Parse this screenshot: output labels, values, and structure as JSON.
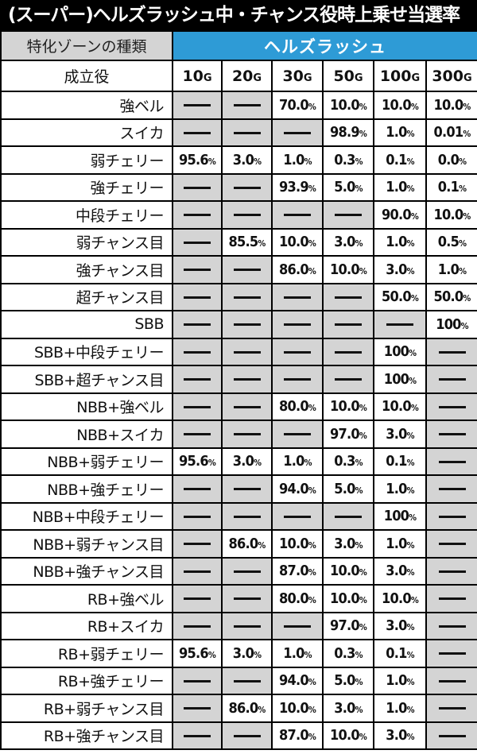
{
  "title": "(スーパー)ヘルズラッシュ中・チャンス役時上乗せ当選率",
  "header": {
    "zone_label": "特化ゾーンの種類",
    "zone_value": "ヘルズラッシュ",
    "role_label": "成立役",
    "games": [
      "10",
      "20",
      "30",
      "50",
      "100",
      "300"
    ],
    "game_unit": "G"
  },
  "colors": {
    "title_bg": "#000000",
    "header_blue": "#2e9bd6",
    "dash_bg": "#d4d4d4"
  },
  "rows": [
    {
      "role": "強ベル",
      "cells": [
        "-",
        "-",
        "70.0",
        "10.0",
        "10.0",
        "10.0"
      ]
    },
    {
      "role": "スイカ",
      "cells": [
        "-",
        "-",
        "-",
        "98.9",
        "1.0",
        "0.01"
      ]
    },
    {
      "role": "弱チェリー",
      "cells": [
        "95.6",
        "3.0",
        "1.0",
        "0.3",
        "0.1",
        "0.0"
      ]
    },
    {
      "role": "強チェリー",
      "cells": [
        "-",
        "-",
        "93.9",
        "5.0",
        "1.0",
        "0.1"
      ]
    },
    {
      "role": "中段チェリー",
      "cells": [
        "-",
        "-",
        "-",
        "-",
        "90.0",
        "10.0"
      ]
    },
    {
      "role": "弱チャンス目",
      "cells": [
        "-",
        "85.5",
        "10.0",
        "3.0",
        "1.0",
        "0.5"
      ]
    },
    {
      "role": "強チャンス目",
      "cells": [
        "-",
        "-",
        "86.0",
        "10.0",
        "3.0",
        "1.0"
      ]
    },
    {
      "role": "超チャンス目",
      "cells": [
        "-",
        "-",
        "-",
        "-",
        "50.0",
        "50.0"
      ]
    },
    {
      "role": "SBB",
      "cells": [
        "-",
        "-",
        "-",
        "-",
        "-",
        "100"
      ]
    },
    {
      "role": "SBB+中段チェリー",
      "cells": [
        "-",
        "-",
        "-",
        "-",
        "100",
        "-"
      ]
    },
    {
      "role": "SBB+超チャンス目",
      "cells": [
        "-",
        "-",
        "-",
        "-",
        "100",
        "-"
      ]
    },
    {
      "role": "NBB+強ベル",
      "cells": [
        "-",
        "-",
        "80.0",
        "10.0",
        "10.0",
        "-"
      ]
    },
    {
      "role": "NBB+スイカ",
      "cells": [
        "-",
        "-",
        "-",
        "97.0",
        "3.0",
        "-"
      ]
    },
    {
      "role": "NBB+弱チェリー",
      "cells": [
        "95.6",
        "3.0",
        "1.0",
        "0.3",
        "0.1",
        "-"
      ]
    },
    {
      "role": "NBB+強チェリー",
      "cells": [
        "-",
        "-",
        "94.0",
        "5.0",
        "1.0",
        "-"
      ]
    },
    {
      "role": "NBB+中段チェリー",
      "cells": [
        "-",
        "-",
        "-",
        "-",
        "100",
        "-"
      ]
    },
    {
      "role": "NBB+弱チャンス目",
      "cells": [
        "-",
        "86.0",
        "10.0",
        "3.0",
        "1.0",
        "-"
      ]
    },
    {
      "role": "NBB+強チャンス目",
      "cells": [
        "-",
        "-",
        "87.0",
        "10.0",
        "3.0",
        "-"
      ]
    },
    {
      "role": "RB+強ベル",
      "cells": [
        "-",
        "-",
        "80.0",
        "10.0",
        "10.0",
        "-"
      ]
    },
    {
      "role": "RB+スイカ",
      "cells": [
        "-",
        "-",
        "-",
        "97.0",
        "3.0",
        "-"
      ]
    },
    {
      "role": "RB+弱チェリー",
      "cells": [
        "95.6",
        "3.0",
        "1.0",
        "0.3",
        "0.1",
        "-"
      ]
    },
    {
      "role": "RB+強チェリー",
      "cells": [
        "-",
        "-",
        "94.0",
        "5.0",
        "1.0",
        "-"
      ]
    },
    {
      "role": "RB+弱チャンス目",
      "cells": [
        "-",
        "86.0",
        "10.0",
        "3.0",
        "1.0",
        "-"
      ]
    },
    {
      "role": "RB+強チャンス目",
      "cells": [
        "-",
        "-",
        "87.0",
        "10.0",
        "3.0",
        "-"
      ]
    }
  ],
  "units": {
    "percent": "%"
  }
}
